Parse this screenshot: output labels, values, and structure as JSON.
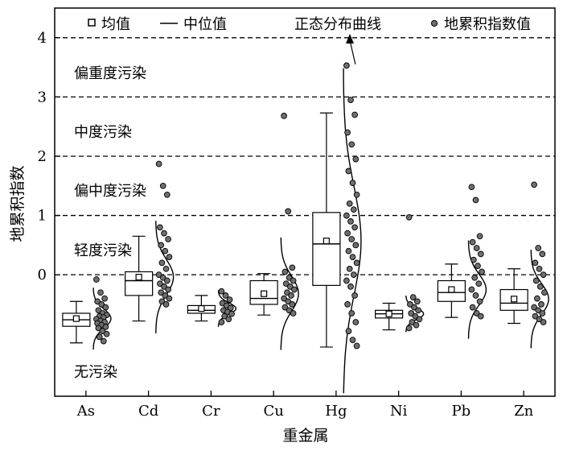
{
  "chart_data": {
    "type": "boxplot",
    "xlabel": "重金属",
    "ylabel": "地累积指数",
    "categories": [
      "As",
      "Cd",
      "Cr",
      "Cu",
      "Hg",
      "Ni",
      "Pb",
      "Zn"
    ],
    "ylim": [
      -2.05,
      4.5
    ],
    "yticks": [
      0,
      1,
      2,
      3,
      4
    ],
    "reference_lines": [
      0,
      1,
      2,
      3,
      4
    ],
    "pollution_levels": [
      "无污染",
      "轻度污染",
      "偏中度污染",
      "中度污染",
      "偏重度污染"
    ],
    "legend": {
      "mean": "均值",
      "median": "中位值",
      "normal_curve": "正态分布曲线",
      "points": "地累积指数值"
    },
    "series": [
      {
        "name": "As",
        "whisker_low": -1.15,
        "q1": -0.87,
        "median": -0.76,
        "q3": -0.65,
        "whisker_high": -0.45,
        "mean": -0.74,
        "points": [
          -0.08,
          -0.3,
          -0.4,
          -0.45,
          -0.5,
          -0.55,
          -0.6,
          -0.65,
          -0.68,
          -0.7,
          -0.72,
          -0.75,
          -0.78,
          -0.8,
          -0.82,
          -0.85,
          -0.88,
          -0.9,
          -0.95,
          -1.0,
          -1.05,
          -1.12
        ]
      },
      {
        "name": "Cd",
        "whisker_low": -0.78,
        "q1": -0.35,
        "median": -0.1,
        "q3": 0.05,
        "whisker_high": 0.65,
        "mean": -0.04,
        "points": [
          1.87,
          1.5,
          1.35,
          0.8,
          0.7,
          0.6,
          0.5,
          0.4,
          0.3,
          0.2,
          0.1,
          0.0,
          -0.05,
          -0.1,
          -0.15,
          -0.2,
          -0.25,
          -0.3,
          -0.35,
          -0.4,
          -0.45,
          -0.5
        ]
      },
      {
        "name": "Cr",
        "whisker_low": -0.78,
        "q1": -0.65,
        "median": -0.6,
        "q3": -0.52,
        "whisker_high": -0.35,
        "mean": -0.57,
        "points": [
          -0.28,
          -0.35,
          -0.42,
          -0.48,
          -0.52,
          -0.56,
          -0.6,
          -0.63,
          -0.66,
          -0.7,
          -0.75,
          -0.8
        ]
      },
      {
        "name": "Cu",
        "whisker_low": -0.68,
        "q1": -0.5,
        "median": -0.4,
        "q3": -0.1,
        "whisker_high": 0.02,
        "mean": -0.32,
        "points": [
          2.68,
          1.07,
          0.12,
          0.05,
          -0.05,
          -0.1,
          -0.15,
          -0.2,
          -0.25,
          -0.3,
          -0.35,
          -0.4,
          -0.45,
          -0.5,
          -0.55,
          -0.6,
          -0.65
        ]
      },
      {
        "name": "Hg",
        "whisker_low": -1.22,
        "q1": -0.18,
        "median": 0.52,
        "q3": 1.05,
        "whisker_high": 2.73,
        "mean": 0.57,
        "points": [
          3.53,
          2.95,
          2.7,
          2.4,
          2.2,
          1.95,
          1.75,
          1.55,
          1.35,
          1.2,
          1.1,
          1.0,
          0.9,
          0.8,
          0.7,
          0.6,
          0.5,
          0.4,
          0.3,
          0.2,
          0.1,
          0.0,
          -0.1,
          -0.2,
          -0.35,
          -0.5,
          -0.65,
          -0.8,
          -0.95,
          -1.1,
          -1.2
        ]
      },
      {
        "name": "Ni",
        "whisker_low": -0.93,
        "q1": -0.73,
        "median": -0.66,
        "q3": -0.6,
        "whisker_high": -0.48,
        "mean": -0.66,
        "points": [
          0.97,
          -0.38,
          -0.45,
          -0.5,
          -0.55,
          -0.6,
          -0.65,
          -0.7,
          -0.75,
          -0.8,
          -0.85,
          -0.9
        ]
      },
      {
        "name": "Pb",
        "whisker_low": -0.72,
        "q1": -0.45,
        "median": -0.3,
        "q3": -0.1,
        "whisker_high": 0.18,
        "mean": -0.25,
        "points": [
          1.48,
          1.26,
          0.65,
          0.55,
          0.45,
          0.35,
          0.25,
          0.15,
          0.05,
          -0.05,
          -0.15,
          -0.25,
          -0.35,
          -0.45,
          -0.55,
          -0.65,
          -0.7
        ]
      },
      {
        "name": "Zn",
        "whisker_low": -0.82,
        "q1": -0.6,
        "median": -0.48,
        "q3": -0.25,
        "whisker_high": 0.1,
        "mean": -0.41,
        "points": [
          1.52,
          0.45,
          0.35,
          0.2,
          0.1,
          0.0,
          -0.1,
          -0.2,
          -0.3,
          -0.4,
          -0.5,
          -0.55,
          -0.6,
          -0.65,
          -0.7,
          -0.75,
          -0.8
        ]
      }
    ]
  }
}
